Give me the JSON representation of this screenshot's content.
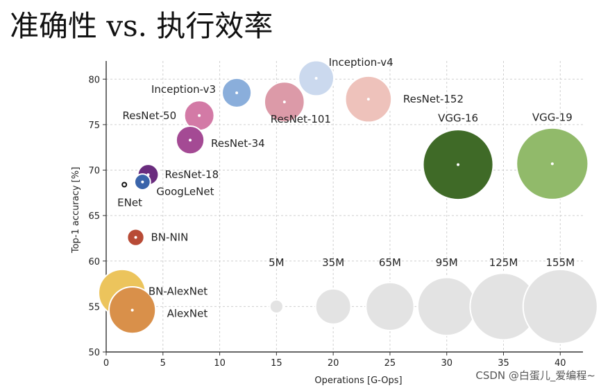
{
  "title": "准确性 vs. 执行效率",
  "watermark": "CSDN @白蛋儿_爱编程~",
  "chart_data": {
    "type": "scatter",
    "xlabel": "Operations [G-Ops]",
    "ylabel": "Top-1 accuracy [%]",
    "xlim": [
      0,
      42
    ],
    "ylim": [
      50,
      82
    ],
    "xticks": [
      "0",
      "5",
      "10",
      "15",
      "20",
      "25",
      "30",
      "35",
      "40"
    ],
    "yticks": [
      "50",
      "55",
      "60",
      "65",
      "70",
      "75",
      "80"
    ],
    "grid": true,
    "points": [
      {
        "name": "Inception-v4",
        "x": 18.5,
        "y": 80.1,
        "params_m": 35,
        "color": "#cbd9ee"
      },
      {
        "name": "Inception-v3",
        "x": 11.5,
        "y": 78.5,
        "params_m": 24,
        "color": "#8aaedb"
      },
      {
        "name": "ResNet-152",
        "x": 23.1,
        "y": 77.8,
        "params_m": 60,
        "color": "#eec2bb"
      },
      {
        "name": "ResNet-101",
        "x": 15.7,
        "y": 77.5,
        "params_m": 45,
        "color": "#dc9aa8"
      },
      {
        "name": "ResNet-50",
        "x": 8.2,
        "y": 76.0,
        "params_m": 25,
        "color": "#d37aa6"
      },
      {
        "name": "ResNet-34",
        "x": 7.4,
        "y": 73.3,
        "params_m": 22,
        "color": "#a44a94"
      },
      {
        "name": "ResNet-18",
        "x": 3.7,
        "y": 69.5,
        "params_m": 12,
        "color": "#6a2c7e"
      },
      {
        "name": "GoogLeNet",
        "x": 3.2,
        "y": 68.7,
        "params_m": 7,
        "color": "#3a64aa"
      },
      {
        "name": "ENet",
        "x": 1.6,
        "y": 68.4,
        "params_m": 0.4,
        "color": "#111111"
      },
      {
        "name": "BN-NIN",
        "x": 2.6,
        "y": 62.6,
        "params_m": 8,
        "color": "#b84b36"
      },
      {
        "name": "VGG-16",
        "x": 31.0,
        "y": 70.6,
        "params_m": 138,
        "color": "#3f6a27"
      },
      {
        "name": "VGG-19",
        "x": 39.3,
        "y": 70.7,
        "params_m": 144,
        "color": "#91ba6a"
      },
      {
        "name": "BN-AlexNet",
        "x": 1.4,
        "y": 56.5,
        "params_m": 62,
        "color": "#ecc45c"
      },
      {
        "name": "AlexNet",
        "x": 2.3,
        "y": 54.6,
        "params_m": 61,
        "color": "#d9904a"
      }
    ],
    "size_legend": [
      {
        "label": "5M",
        "x": 15,
        "y": 55,
        "params_m": 5
      },
      {
        "label": "35M",
        "x": 20,
        "y": 55,
        "params_m": 35
      },
      {
        "label": "65M",
        "x": 25,
        "y": 55,
        "params_m": 65
      },
      {
        "label": "95M",
        "x": 30,
        "y": 55,
        "params_m": 95
      },
      {
        "label": "125M",
        "x": 35,
        "y": 55,
        "params_m": 125
      },
      {
        "label": "155M",
        "x": 40,
        "y": 55,
        "params_m": 155
      }
    ],
    "legend_color": "#e3e3e3"
  }
}
